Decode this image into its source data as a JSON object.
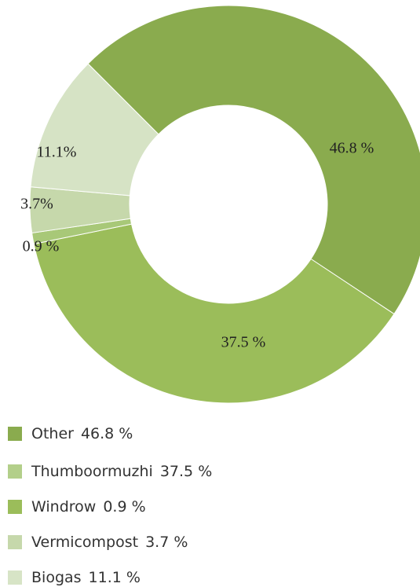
{
  "chart_data": {
    "type": "pie",
    "categories": [
      "Other",
      "Thumboormuzhi",
      "Windrow",
      "Vermicompost",
      "Biogas"
    ],
    "values": [
      46.8,
      37.5,
      0.9,
      3.7,
      11.1
    ],
    "value_labels": [
      "46.8 %",
      "37.5 %",
      "0.9 %",
      "3.7%",
      "11.1%"
    ],
    "legend_value_labels": [
      "46.8 %",
      "37.5 %",
      "0.9 %",
      "3.7 %",
      "11.1 %"
    ],
    "colors": [
      "#8aab4e",
      "#9bbd5a",
      "#a8c878",
      "#c6d8ab",
      "#d6e3c5"
    ],
    "legend_colors": [
      "#8aab4e",
      "#b3cf8a",
      "#9bbd5a",
      "#c6d8ab",
      "#d7e4c6"
    ]
  }
}
